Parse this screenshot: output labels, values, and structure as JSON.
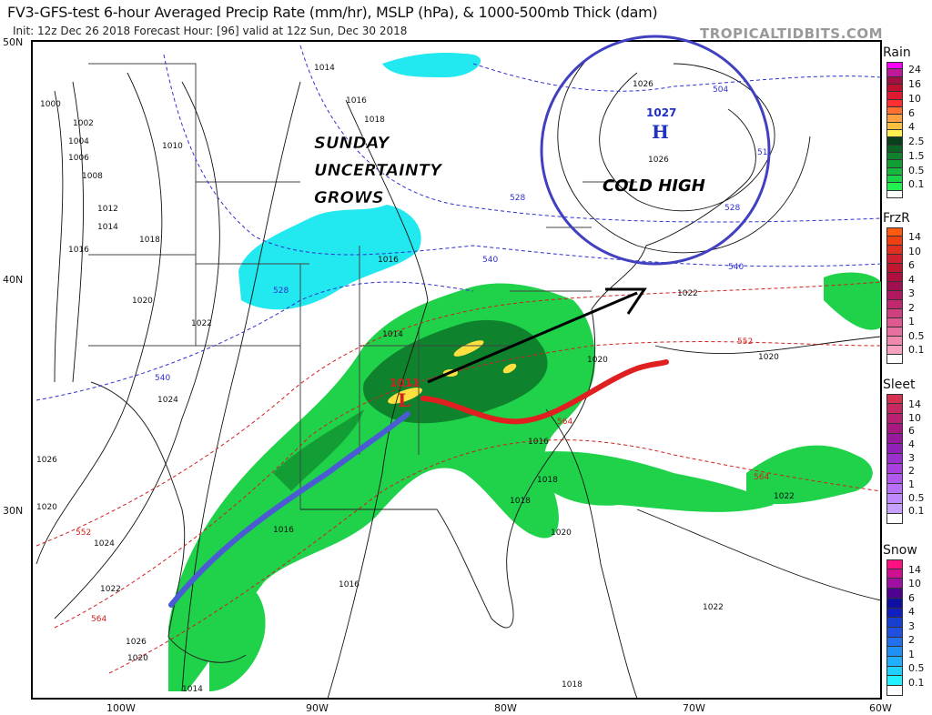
{
  "header": {
    "title": "FV3-GFS-test 6-hour Averaged Precip Rate (mm/hr), MSLP (hPa), & 1000-500mb Thick (dam)",
    "subtitle": "Init: 12z Dec 26 2018   Forecast Hour: [96]   valid at 12z Sun, Dec 30 2018",
    "brand": "TROPICALTIDBITS.COM"
  },
  "axes": {
    "lat_labels": [
      "50N",
      "40N",
      "30N"
    ],
    "lon_labels": [
      "100W",
      "90W",
      "80W",
      "70W",
      "60W"
    ]
  },
  "annotations": {
    "uncertainty": [
      "SUNDAY",
      "UNCERTAINTY",
      "GROWS"
    ],
    "cold_high": "COLD HIGH",
    "high_pressure": "1027",
    "high_symbol": "H",
    "low_pressure": "1011",
    "low_symbol": "L",
    "colors": {
      "circle": "#4040c0",
      "cold_front": "#4a5bd4",
      "warm_front": "#e02020",
      "track_arrow": "#000000"
    }
  },
  "contour_labels": {
    "isobars": [
      "1000",
      "1002",
      "1004",
      "1006",
      "1008",
      "1010",
      "1012",
      "1014",
      "1016",
      "1018",
      "1020",
      "1022",
      "1024",
      "1026",
      "1014",
      "1016",
      "1018",
      "1016",
      "1020",
      "1022",
      "1024",
      "1026",
      "1014",
      "1016",
      "1018",
      "1020",
      "1022",
      "1020",
      "1022",
      "1016",
      "1018",
      "1020",
      "1026",
      "1026",
      "1014",
      "1016",
      "1018",
      "1022",
      "1020"
    ],
    "thickness": [
      "504",
      "51",
      "528",
      "528",
      "540",
      "540",
      "528",
      "552",
      "564",
      "540",
      "552",
      "564",
      "564"
    ]
  },
  "legends": [
    {
      "name": "Rain",
      "colors": [
        "#ff00ff",
        "#c0189a",
        "#a01040",
        "#c01030",
        "#e01830",
        "#ff3030",
        "#ff7030",
        "#ffa040",
        "#ffc040",
        "#fff050",
        "#07401a",
        "#0b6424",
        "#0e822c",
        "#129e34",
        "#16b83e",
        "#1ad448",
        "#20f050",
        "#ffffff"
      ],
      "labels": [
        "24",
        "16",
        "10",
        "6",
        "4",
        "2.5",
        "1.5",
        "0.5",
        "0.1"
      ]
    },
    {
      "name": "FrzR",
      "colors": [
        "#ff5a10",
        "#f04010",
        "#e03020",
        "#d02030",
        "#c01830",
        "#b01040",
        "#a01050",
        "#b01860",
        "#c02870",
        "#d04080",
        "#e05890",
        "#e870a0",
        "#f088b0",
        "#f8a0c0",
        "#ffffff"
      ],
      "labels": [
        "14",
        "10",
        "6",
        "4",
        "3",
        "2",
        "1",
        "0.5",
        "0.1"
      ]
    },
    {
      "name": "Sleet",
      "colors": [
        "#d83050",
        "#c82860",
        "#b82070",
        "#a81880",
        "#9818a0",
        "#9020b8",
        "#9a30d0",
        "#a840e0",
        "#b058f0",
        "#b870f8",
        "#c088ff",
        "#c8a0ff",
        "#ffffff"
      ],
      "labels": [
        "14",
        "10",
        "6",
        "4",
        "3",
        "2",
        "1",
        "0.5",
        "0.1"
      ]
    },
    {
      "name": "Snow",
      "colors": [
        "#ff1080",
        "#d01090",
        "#a010a0",
        "#500090",
        "#1010a0",
        "#1020c0",
        "#1840d0",
        "#2050e0",
        "#2070f0",
        "#2090f8",
        "#20b0ff",
        "#20d0ff",
        "#20f0ff",
        "#ffffff"
      ],
      "labels": [
        "14",
        "10",
        "6",
        "4",
        "3",
        "2",
        "1",
        "0.5",
        "0.1"
      ]
    }
  ]
}
